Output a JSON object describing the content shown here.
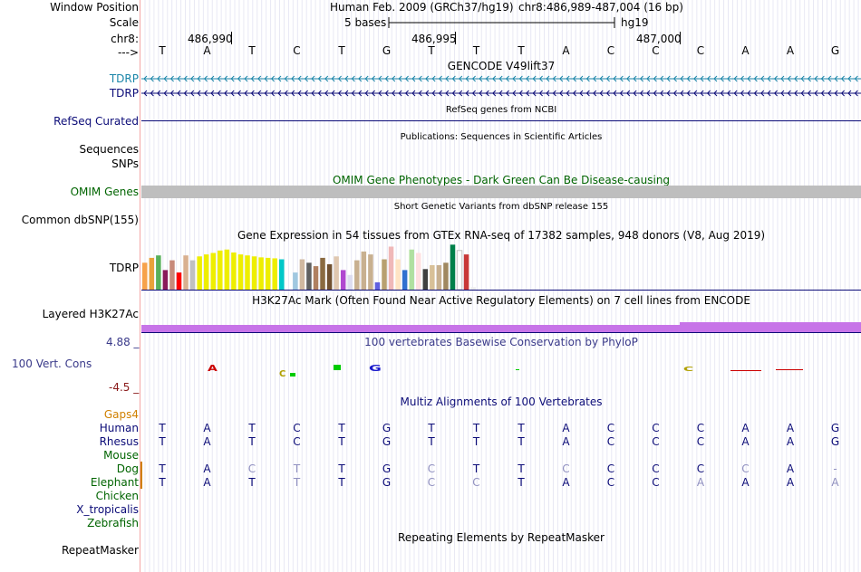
{
  "header": {
    "window_position_label": "Window Position",
    "scale_label": "Scale",
    "chrom_label": "chr8:",
    "strand_label": "--->",
    "assembly": "Human Feb. 2009 (GRCh37/hg19)",
    "position": "chr8:486,989-487,004 (16 bp)",
    "scale_text": "5 bases",
    "db": "hg19",
    "ticks": [
      "486,990",
      "486,995",
      "487,000"
    ]
  },
  "reference_bases": [
    "T",
    "A",
    "T",
    "C",
    "T",
    "G",
    "T",
    "T",
    "T",
    "A",
    "C",
    "C",
    "C",
    "A",
    "A",
    "G"
  ],
  "tracks": {
    "gencode": {
      "title": "GENCODE V49lift37",
      "items": [
        "TDRP",
        "TDRP"
      ],
      "color1": "#1a85a8",
      "color2": "#0c0c78"
    },
    "refseq": {
      "title": "RefSeq genes from NCBI",
      "label": "RefSeq Curated",
      "color": "#0c0c78"
    },
    "publications": {
      "title": "Publications: Sequences in Scientific Articles",
      "labels": [
        "Sequences",
        "SNPs"
      ]
    },
    "omim": {
      "title": "OMIM Gene Phenotypes - Dark Green Can Be Disease-causing",
      "label": "OMIM Genes",
      "color": "#006400",
      "bar_color": "#bebebe"
    },
    "dbsnp": {
      "title": "Short Genetic Variants from dbSNP release 155",
      "label": "Common dbSNP(155)"
    },
    "gtex": {
      "title": "Gene Expression in 54 tissues from GTEx RNA-seq of 17382 samples, 948 donors (V8, Aug 2019)",
      "label": "TDRP",
      "bars": [
        {
          "v": 0.55,
          "c": "#f7a24a"
        },
        {
          "v": 0.65,
          "c": "#e8a23a"
        },
        {
          "v": 0.7,
          "c": "#58b05a"
        },
        {
          "v": 0.4,
          "c": "#8a1a5a"
        },
        {
          "v": 0.6,
          "c": "#c78a7a"
        },
        {
          "v": 0.35,
          "c": "#ff0000"
        },
        {
          "v": 0.7,
          "c": "#d9b090"
        },
        {
          "v": 0.6,
          "c": "#c0c0c0"
        },
        {
          "v": 0.68,
          "c": "#eeee00"
        },
        {
          "v": 0.72,
          "c": "#eeee00"
        },
        {
          "v": 0.75,
          "c": "#eeee00"
        },
        {
          "v": 0.8,
          "c": "#eeee00"
        },
        {
          "v": 0.82,
          "c": "#eeee00"
        },
        {
          "v": 0.76,
          "c": "#eeee00"
        },
        {
          "v": 0.72,
          "c": "#eeee00"
        },
        {
          "v": 0.7,
          "c": "#eeee00"
        },
        {
          "v": 0.68,
          "c": "#eeee00"
        },
        {
          "v": 0.66,
          "c": "#eeee00"
        },
        {
          "v": 0.65,
          "c": "#eeee00"
        },
        {
          "v": 0.64,
          "c": "#eeee00"
        },
        {
          "v": 0.62,
          "c": "#00c8c8"
        },
        {
          "v": 0.0,
          "c": "#ffffff"
        },
        {
          "v": 0.35,
          "c": "#a0c8e0"
        },
        {
          "v": 0.62,
          "c": "#d0b8a0"
        },
        {
          "v": 0.55,
          "c": "#606060"
        },
        {
          "v": 0.48,
          "c": "#b08060"
        },
        {
          "v": 0.65,
          "c": "#8a6a40"
        },
        {
          "v": 0.52,
          "c": "#705030"
        },
        {
          "v": 0.68,
          "c": "#e0c8b0"
        },
        {
          "v": 0.4,
          "c": "#b048d0"
        },
        {
          "v": 0.3,
          "c": "#ddddf0"
        },
        {
          "v": 0.6,
          "c": "#c8b090"
        },
        {
          "v": 0.78,
          "c": "#c8b090"
        },
        {
          "v": 0.72,
          "c": "#c8b090"
        },
        {
          "v": 0.15,
          "c": "#6060e0"
        },
        {
          "v": 0.62,
          "c": "#b8a070"
        },
        {
          "v": 0.88,
          "c": "#f0b8b8"
        },
        {
          "v": 0.62,
          "c": "#ffe4c4"
        },
        {
          "v": 0.4,
          "c": "#3070d0"
        },
        {
          "v": 0.82,
          "c": "#b0e0a0"
        },
        {
          "v": 0.75,
          "c": "#ffe0e0"
        },
        {
          "v": 0.42,
          "c": "#404040"
        },
        {
          "v": 0.5,
          "c": "#d8c098"
        },
        {
          "v": 0.5,
          "c": "#c8b090"
        },
        {
          "v": 0.55,
          "c": "#a08860"
        },
        {
          "v": 0.92,
          "c": "#00804a"
        },
        {
          "v": 0.8,
          "c": "#ffffff"
        },
        {
          "v": 0.72,
          "c": "#c83838"
        },
        {
          "v": 0.05,
          "c": "#eeeeee"
        }
      ]
    },
    "h3k27ac": {
      "title": "H3K27Ac Mark (Often Found Near Active Regulatory Elements) on 7 cell lines from ENCODE",
      "label": "Layered H3K27Ac",
      "color": "#c774e8"
    },
    "phylop": {
      "title": "100 vertebrates Basewise Conservation by PhyloP",
      "label": "100 Vert. Cons",
      "max": "4.88 _",
      "min": "-4.5 _",
      "title_color": "#3a3a8a",
      "label_color": "#3a3a8a",
      "min_color": "#8a1a1a"
    },
    "multiz": {
      "title": "Multiz Alignments of 100 Vertebrates",
      "title_color": "#0c0c78",
      "gaps_label": "Gaps4",
      "gaps_color": "#d08000",
      "species": [
        {
          "name": "Human",
          "color": "#0c0c78",
          "seq": [
            "T",
            "A",
            "T",
            "C",
            "T",
            "G",
            "T",
            "T",
            "T",
            "A",
            "C",
            "C",
            "C",
            "A",
            "A",
            "G"
          ]
        },
        {
          "name": "Rhesus",
          "color": "#0c0c78",
          "seq": [
            "T",
            "A",
            "T",
            "C",
            "T",
            "G",
            "T",
            "T",
            "T",
            "A",
            "C",
            "C",
            "C",
            "A",
            "A",
            "G"
          ]
        },
        {
          "name": "Mouse",
          "color": "#006400",
          "seq": []
        },
        {
          "name": "Dog",
          "color": "#006400",
          "seq": [
            "T",
            "A",
            "C",
            "T",
            "T",
            "G",
            "C",
            "T",
            "T",
            "C",
            "C",
            "C",
            "C",
            "C",
            "A",
            "-"
          ]
        },
        {
          "name": "Elephant",
          "color": "#006400",
          "seq": [
            "T",
            "A",
            "T",
            "T",
            "T",
            "G",
            "C",
            "C",
            "T",
            "A",
            "C",
            "C",
            "A",
            "A",
            "A",
            "A"
          ]
        },
        {
          "name": "Chicken",
          "color": "#006400",
          "seq": []
        },
        {
          "name": "X_tropicalis",
          "color": "#0c0c78",
          "seq": []
        },
        {
          "name": "Zebrafish",
          "color": "#006400",
          "seq": []
        }
      ]
    },
    "repeatmasker": {
      "title": "Repeating Elements by RepeatMasker",
      "label": "RepeatMasker"
    }
  }
}
